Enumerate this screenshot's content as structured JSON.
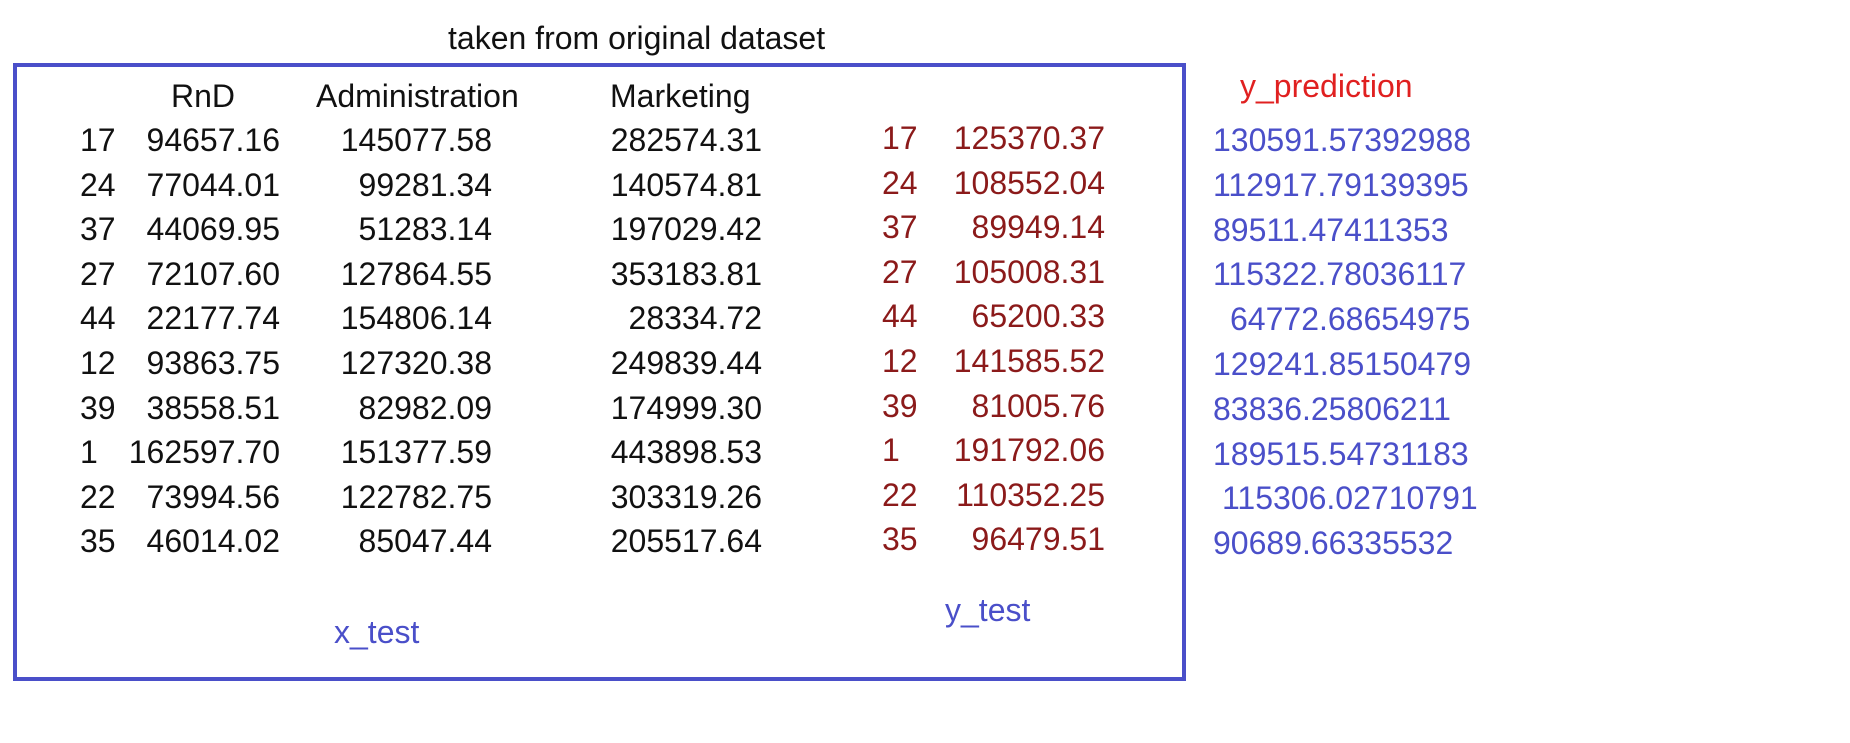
{
  "header": {
    "title": "taken from original dataset"
  },
  "x_test": {
    "label": "x_test",
    "columns": [
      "RnD",
      "Administration",
      "Marketing"
    ],
    "rows": [
      {
        "index": "17",
        "rnd": "94657.16",
        "admin": "145077.58",
        "marketing": "282574.31"
      },
      {
        "index": "24",
        "rnd": "77044.01",
        "admin": "99281.34",
        "marketing": "140574.81"
      },
      {
        "index": "37",
        "rnd": "44069.95",
        "admin": "51283.14",
        "marketing": "197029.42"
      },
      {
        "index": "27",
        "rnd": "72107.60",
        "admin": "127864.55",
        "marketing": "353183.81"
      },
      {
        "index": "44",
        "rnd": "22177.74",
        "admin": "154806.14",
        "marketing": "28334.72"
      },
      {
        "index": "12",
        "rnd": "93863.75",
        "admin": "127320.38",
        "marketing": "249839.44"
      },
      {
        "index": "39",
        "rnd": "38558.51",
        "admin": "82982.09",
        "marketing": "174999.30"
      },
      {
        "index": "1",
        "rnd": "162597.70",
        "admin": "151377.59",
        "marketing": "443898.53"
      },
      {
        "index": "22",
        "rnd": "73994.56",
        "admin": "122782.75",
        "marketing": "303319.26"
      },
      {
        "index": "35",
        "rnd": "46014.02",
        "admin": "85047.44",
        "marketing": "205517.64"
      }
    ]
  },
  "y_test": {
    "label": "y_test",
    "rows": [
      {
        "index": "17",
        "value": "125370.37"
      },
      {
        "index": "24",
        "value": "108552.04"
      },
      {
        "index": "37",
        "value": "89949.14"
      },
      {
        "index": "27",
        "value": "105008.31"
      },
      {
        "index": "44",
        "value": "65200.33"
      },
      {
        "index": "12",
        "value": "141585.52"
      },
      {
        "index": "39",
        "value": "81005.76"
      },
      {
        "index": "1",
        "value": "191792.06"
      },
      {
        "index": "22",
        "value": "110352.25"
      },
      {
        "index": "35",
        "value": "96479.51"
      }
    ]
  },
  "y_prediction": {
    "title": "y_prediction",
    "values": [
      "130591.57392988",
      "112917.79139395",
      "89511.47411353",
      "115322.78036117",
      "64772.68654975",
      "129241.85150479",
      "83836.25806211",
      "189515.54731183",
      "115306.02710791",
      "90689.66335532"
    ]
  },
  "colors": {
    "frame": "#4a4fc9",
    "y_test_values": "#8b1a1a",
    "prediction_title": "#e02020",
    "prediction_values": "#4a4fc9"
  }
}
